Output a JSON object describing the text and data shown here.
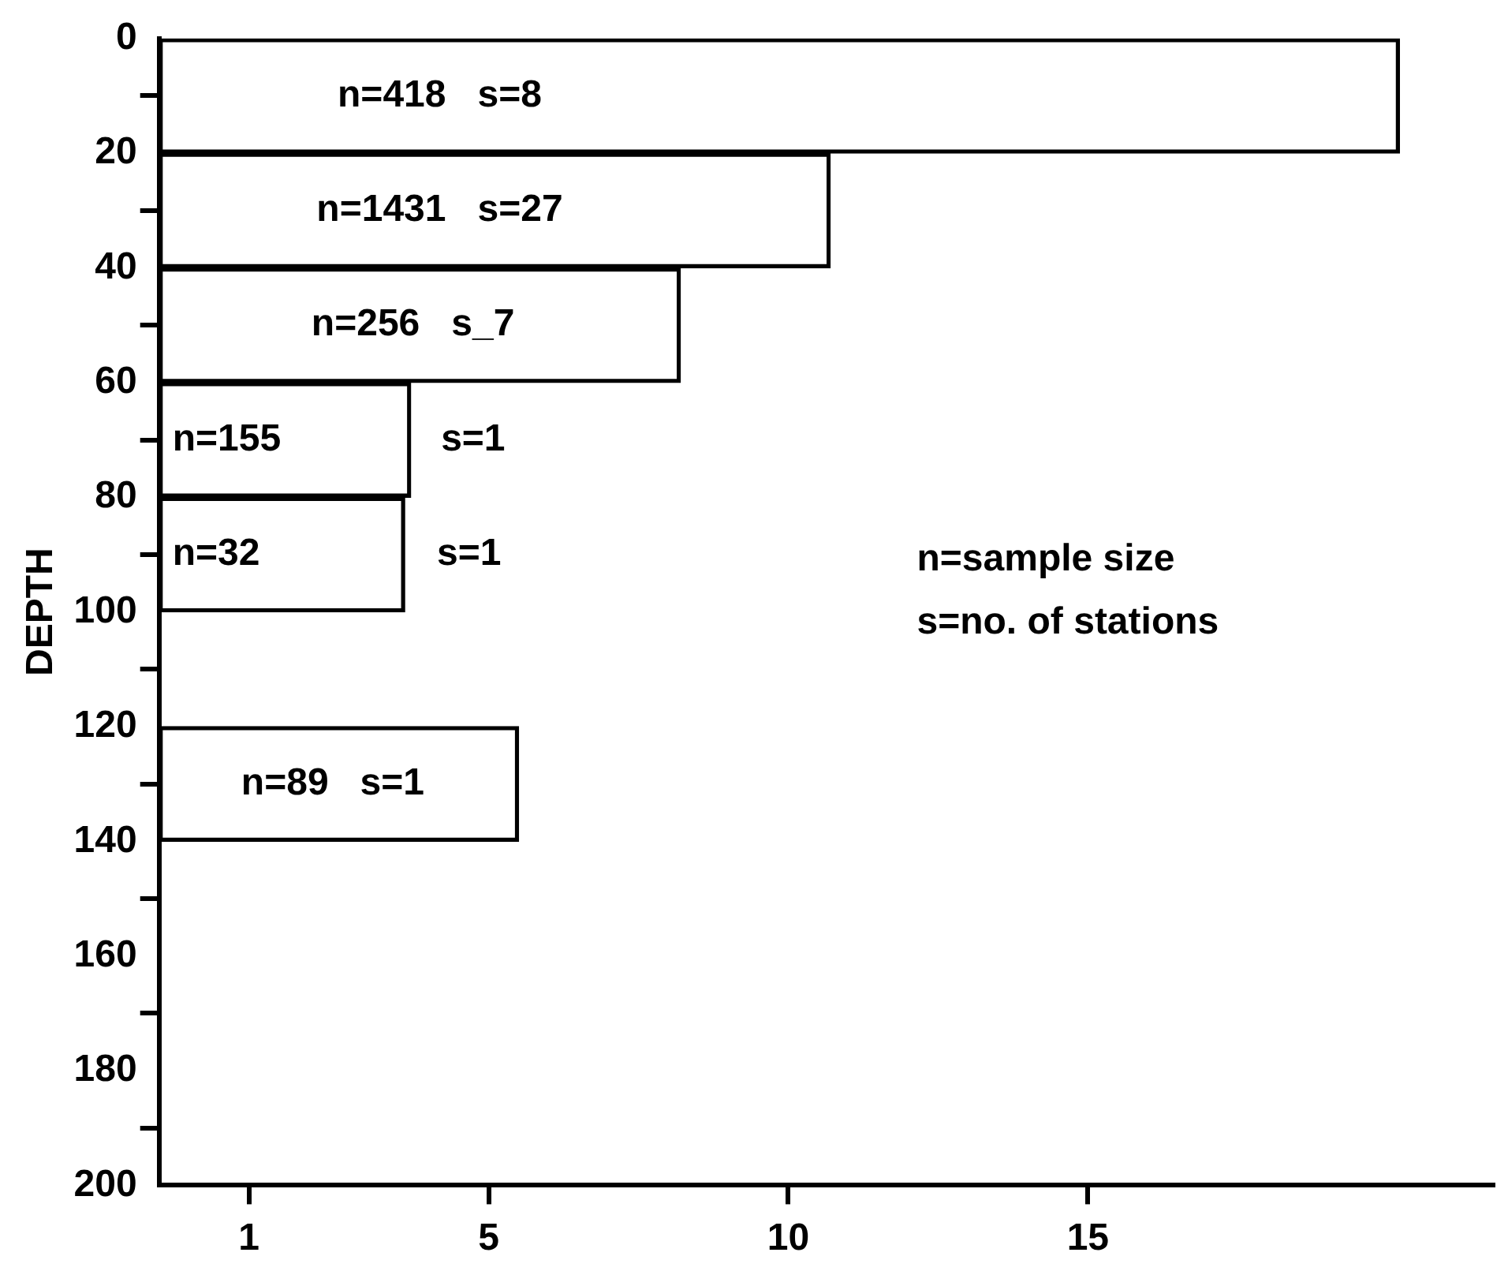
{
  "chart_data": {
    "type": "histogram",
    "orientation": "horizontal",
    "ylabel": "DEPTH",
    "bins": [
      0,
      20,
      40,
      60,
      80,
      100,
      120,
      140
    ],
    "values": [
      20.7,
      11.2,
      8.7,
      4.2,
      4.1,
      null,
      6.0
    ],
    "base": [
      -0.5,
      -0.5,
      -0.5,
      -0.5,
      -0.5,
      null,
      -0.5
    ],
    "color": "#000000",
    "xlim": [
      -0.5,
      21.8
    ],
    "xticks": [
      1,
      5,
      10,
      15
    ],
    "ylim": [
      200,
      0
    ],
    "yticks": [
      0,
      20,
      40,
      60,
      80,
      100,
      120,
      140,
      160,
      180,
      200
    ],
    "grid": false,
    "legend": false,
    "annotations": [
      "n=418   s=8",
      "n=1431   s=27",
      "n=256   s_7",
      "n=155",
      "s=1",
      "n=32",
      "s=1",
      "n=89   s=1",
      "n=sample size",
      "s=no. of stations"
    ]
  }
}
